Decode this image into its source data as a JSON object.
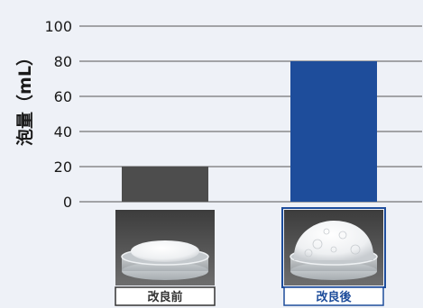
{
  "chart_data": {
    "type": "bar",
    "ylabel": "泡量（mL）",
    "ylim": [
      0,
      100
    ],
    "yticks": [
      0,
      20,
      40,
      60,
      80,
      100
    ],
    "grid": true,
    "categories": [
      "改良前",
      "改良後"
    ],
    "values": [
      20,
      80
    ],
    "colors": [
      "#4d4d4d",
      "#1e4d9b"
    ],
    "category_label_colors": [
      "#333333",
      "#1e4d9b"
    ]
  },
  "photos": [
    {
      "category": "改良前",
      "foam": "small"
    },
    {
      "category": "改良後",
      "foam": "large"
    }
  ]
}
